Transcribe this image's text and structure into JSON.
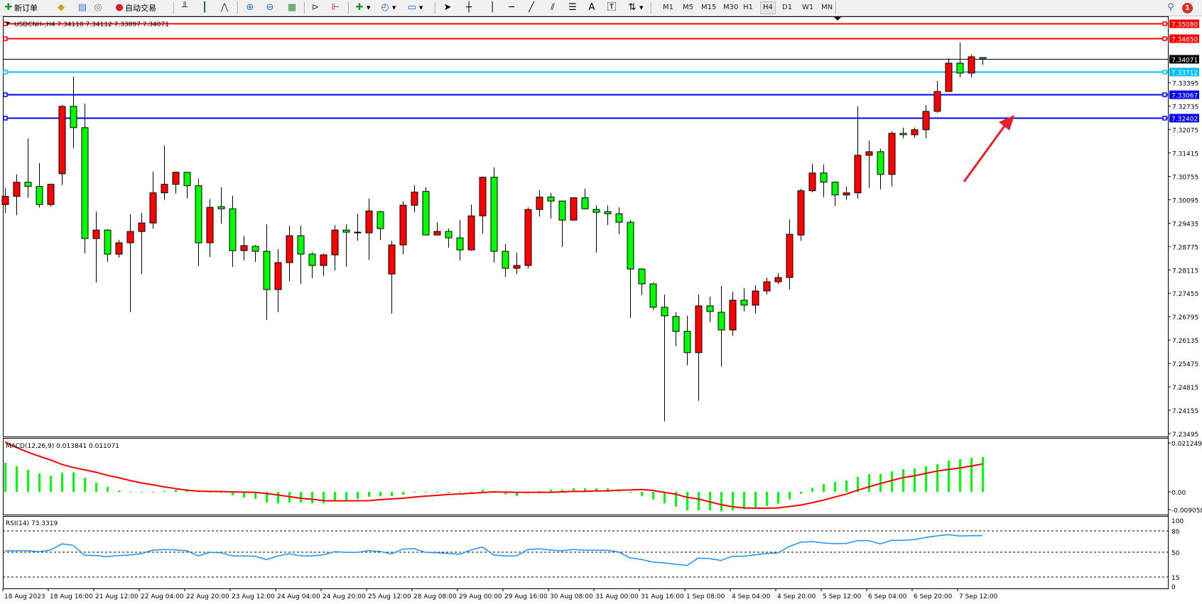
{
  "toolbar": {
    "new_order_label": "新订单",
    "auto_trading_label": "自动交易",
    "timeframes": [
      "M1",
      "M5",
      "M15",
      "M30",
      "H1",
      "H4",
      "D1",
      "W1",
      "MN"
    ],
    "active_timeframe": "H4",
    "notification_count": "1"
  },
  "chart": {
    "header": "USDCNH-,H4  7.34110 7.34112 7.33897 7.34071",
    "colors": {
      "bull": "#ff0000",
      "bear": "#00ff00",
      "outline": "#000000"
    },
    "price_ticks": [
      "7.33395",
      "7.32735",
      "7.32075",
      "7.31415",
      "7.30755",
      "7.30095",
      "7.29435",
      "7.28775",
      "7.28115",
      "7.27455",
      "7.26795",
      "7.26135",
      "7.25475",
      "7.24815",
      "7.24155",
      "7.23495"
    ],
    "horizontal_lines": [
      {
        "price": "7.35080",
        "color": "#ff0000"
      },
      {
        "price": "7.34650",
        "color": "#ff0000"
      },
      {
        "price": "7.34071",
        "color": "#000000"
      },
      {
        "price": "7.33712",
        "color": "#00bfff"
      },
      {
        "price": "7.33067",
        "color": "#0000ff"
      },
      {
        "price": "7.32402",
        "color": "#0000ff"
      }
    ],
    "arrow_color": "#e8202a",
    "time_labels": [
      "18 Aug 2023",
      "18 Aug 16:00",
      "21 Aug 12:00",
      "22 Aug 04:00",
      "22 Aug 20:00",
      "23 Aug 12:00",
      "24 Aug 04:00",
      "24 Aug 20:00",
      "25 Aug 12:00",
      "28 Aug 08:00",
      "29 Aug 00:00",
      "29 Aug 16:00",
      "30 Aug 08:00",
      "31 Aug 00:00",
      "31 Aug 16:00",
      "1 Sep 08:00",
      "4 Sep 04:00",
      "4 Sep 20:00",
      "5 Sep 12:00",
      "6 Sep 04:00",
      "6 Sep 20:00",
      "7 Sep 12:00"
    ],
    "candles_ohlc": [
      [
        7.2996,
        7.3043,
        7.2972,
        7.3019
      ],
      [
        7.3019,
        7.3081,
        7.2966,
        7.3059
      ],
      [
        7.3059,
        7.3183,
        7.3015,
        7.3047
      ],
      [
        7.3047,
        7.3113,
        7.2988,
        7.2996
      ],
      [
        7.2996,
        7.3055,
        7.299,
        7.3053
      ],
      [
        7.3083,
        7.3277,
        7.3051,
        7.3273
      ],
      [
        7.3273,
        7.3357,
        7.3155,
        7.3213
      ],
      [
        7.3213,
        7.3281,
        7.2858,
        7.29
      ],
      [
        7.29,
        7.2976,
        7.2776,
        7.2924
      ],
      [
        7.2924,
        7.2926,
        7.2834,
        7.2856
      ],
      [
        7.2856,
        7.2896,
        7.2846,
        7.2888
      ],
      [
        7.2888,
        7.2968,
        7.2692,
        7.292
      ],
      [
        7.292,
        7.2972,
        7.28,
        7.2944
      ],
      [
        7.2944,
        7.3089,
        7.2928,
        7.3029
      ],
      [
        7.3029,
        7.3163,
        7.3009,
        7.3053
      ],
      [
        7.3053,
        7.3089,
        7.3027,
        7.3087
      ],
      [
        7.3087,
        7.3087,
        7.3013,
        7.3049
      ],
      [
        7.3049,
        7.3069,
        7.2822,
        7.2888
      ],
      [
        7.2888,
        7.3011,
        7.2848,
        7.2988
      ],
      [
        7.299,
        7.3045,
        7.2942,
        7.2984
      ],
      [
        7.2984,
        7.3021,
        7.282,
        7.2866
      ],
      [
        7.2866,
        7.2908,
        7.2838,
        7.288
      ],
      [
        7.2878,
        7.2882,
        7.2834,
        7.2864
      ],
      [
        7.2864,
        7.294,
        7.267,
        7.2756
      ],
      [
        7.2756,
        7.287,
        7.2692,
        7.2832
      ],
      [
        7.2832,
        7.2936,
        7.278,
        7.2908
      ],
      [
        7.2908,
        7.2936,
        7.2772,
        7.2856
      ],
      [
        7.2856,
        7.2862,
        7.2788,
        7.2824
      ],
      [
        7.2824,
        7.2858,
        7.2794,
        7.2854
      ],
      [
        7.2854,
        7.2938,
        7.281,
        7.2924
      ],
      [
        7.2924,
        7.294,
        7.282,
        7.2918
      ],
      [
        7.2918,
        7.297,
        7.2894,
        7.2916
      ],
      [
        7.2916,
        7.3013,
        7.284,
        7.2978
      ],
      [
        7.2976,
        7.2978,
        7.2896,
        7.2928
      ],
      [
        7.28,
        7.2894,
        7.2688,
        7.2882
      ],
      [
        7.2882,
        7.3005,
        7.2856,
        7.2994
      ],
      [
        7.2994,
        7.3051,
        7.2974,
        7.3031
      ],
      [
        7.3033,
        7.3045,
        7.291,
        7.291
      ],
      [
        7.291,
        7.2946,
        7.291,
        7.292
      ],
      [
        7.292,
        7.2928,
        7.2874,
        7.2902
      ],
      [
        7.2902,
        7.2952,
        7.2838,
        7.2868
      ],
      [
        7.2868,
        7.2996,
        7.2866,
        7.2964
      ],
      [
        7.2964,
        7.3075,
        7.2914,
        7.3073
      ],
      [
        7.3073,
        7.3101,
        7.2832,
        7.2864
      ],
      [
        7.2864,
        7.2884,
        7.2792,
        7.2816
      ],
      [
        7.2816,
        7.286,
        7.28,
        7.2824
      ],
      [
        7.2824,
        7.2988,
        7.2816,
        7.2982
      ],
      [
        7.2982,
        7.3037,
        7.2962,
        7.3017
      ],
      [
        7.3017,
        7.3029,
        7.2956,
        7.3006
      ],
      [
        7.3006,
        7.3006,
        7.2876,
        7.2952
      ],
      [
        7.2952,
        7.3017,
        7.2952,
        7.3015
      ],
      [
        7.3015,
        7.3041,
        7.2982,
        7.2984
      ],
      [
        7.2982,
        7.2994,
        7.286,
        7.2974
      ],
      [
        7.2976,
        7.2994,
        7.2938,
        7.297
      ],
      [
        7.297,
        7.2988,
        7.2912,
        7.2946
      ],
      [
        7.2946,
        7.2952,
        7.2676,
        7.2814
      ],
      [
        7.2814,
        7.2816,
        7.274,
        7.2772
      ],
      [
        7.2772,
        7.2776,
        7.2698,
        7.2706
      ],
      [
        7.2706,
        7.2742,
        7.2384,
        7.2682
      ],
      [
        7.268,
        7.2692,
        7.2596,
        7.2638
      ],
      [
        7.2638,
        7.2682,
        7.2542,
        7.2578
      ],
      [
        7.2578,
        7.2742,
        7.2442,
        7.271
      ],
      [
        7.271,
        7.2736,
        7.2664,
        7.2694
      ],
      [
        7.2692,
        7.2766,
        7.2538,
        7.2642
      ],
      [
        7.2642,
        7.275,
        7.2626,
        7.2726
      ],
      [
        7.2726,
        7.276,
        7.2694,
        7.2712
      ],
      [
        7.2712,
        7.2768,
        7.2688,
        7.2752
      ],
      [
        7.2752,
        7.279,
        7.2742,
        7.2778
      ],
      [
        7.2778,
        7.2802,
        7.2772,
        7.279
      ],
      [
        7.279,
        7.2954,
        7.2756,
        7.2912
      ],
      [
        7.291,
        7.3041,
        7.2894,
        7.3035
      ],
      [
        7.3035,
        7.3111,
        7.3031,
        7.3085
      ],
      [
        7.3085,
        7.3109,
        7.3017,
        7.3059
      ],
      [
        7.3059,
        7.3061,
        7.2992,
        7.3023
      ],
      [
        7.3023,
        7.3047,
        7.3009,
        7.3029
      ],
      [
        7.3029,
        7.3273,
        7.3013,
        7.3135
      ],
      [
        7.3135,
        7.3177,
        7.3043,
        7.3145
      ],
      [
        7.3145,
        7.3153,
        7.3039,
        7.3081
      ],
      [
        7.3081,
        7.3203,
        7.3047,
        7.3197
      ],
      [
        7.3197,
        7.3213,
        7.3183,
        7.3193
      ],
      [
        7.3193,
        7.3213,
        7.3185,
        7.3207
      ],
      [
        7.3207,
        7.3277,
        7.3183,
        7.3259
      ],
      [
        7.3259,
        7.3345,
        7.3255,
        7.3315
      ],
      [
        7.3315,
        7.3409,
        7.3315,
        7.3395
      ],
      [
        7.3395,
        7.3453,
        7.3355,
        7.3367
      ],
      [
        7.3367,
        7.3419,
        7.3355,
        7.3413
      ],
      [
        7.3411,
        7.34112,
        7.33897,
        7.34071
      ]
    ]
  },
  "macd": {
    "label": "MACD(12,26,9) 0.013841 0.011071",
    "axis_labels": [
      "0.021249",
      "0.00",
      "-0.009058"
    ],
    "histogram_color": "#00ff00",
    "signal_color": "#ff0000",
    "histogram": [
      0.01156,
      0.01015,
      0.00874,
      0.00733,
      0.00639,
      0.00761,
      0.0078,
      0.00555,
      0.00367,
      0.00197,
      0.00056,
      -0.00019,
      -0.00019,
      -0.00019,
      0.00038,
      0.00094,
      0.00066,
      0.00019,
      0,
      -0.00038,
      -0.00132,
      -0.00226,
      -0.00273,
      -0.00423,
      -0.00451,
      -0.00423,
      -0.00423,
      -0.00451,
      -0.00451,
      -0.00348,
      -0.00348,
      -0.00282,
      -0.00197,
      -0.00169,
      -0.00169,
      -0.00113,
      0.00019,
      0,
      0,
      -0.00038,
      0,
      0.00019,
      0.00085,
      0.00028,
      -0.00103,
      -0.00169,
      -0.00066,
      0.00028,
      0.00085,
      0.00085,
      0.00141,
      0.00141,
      0.00141,
      0.00141,
      0.00028,
      -0.00019,
      -0.00169,
      -0.00301,
      -0.00451,
      -0.00583,
      -0.00733,
      -0.00733,
      -0.00733,
      -0.0078,
      -0.00733,
      -0.00696,
      -0.00649,
      -0.00564,
      -0.0047,
      -0.00301,
      -0.00075,
      0.0016,
      0.0031,
      0.00395,
      0.00451,
      0.00592,
      0.00705,
      0.00705,
      0.00818,
      0.00902,
      0.00931,
      0.01015,
      0.011,
      0.01241,
      0.01297,
      0.01354,
      0.013841
    ],
    "signal": [
      0.01983,
      0.01767,
      0.01579,
      0.01419,
      0.01269,
      0.0109,
      0.00968,
      0.00874,
      0.0078,
      0.00658,
      0.00564,
      0.00451,
      0.00357,
      0.00282,
      0.00197,
      0.00132,
      0.00066,
      0.00028,
      0.00019,
      9e-05,
      0,
      -9e-05,
      -0.00019,
      -0.00066,
      -0.00122,
      -0.00188,
      -0.00254,
      -0.00291,
      -0.00348,
      -0.00357,
      -0.00357,
      -0.00357,
      -0.00348,
      -0.0031,
      -0.00282,
      -0.00254,
      -0.00207,
      -0.00169,
      -0.00141,
      -0.00103,
      -0.00085,
      -0.00056,
      -0.00028,
      0,
      -9e-05,
      -0.00019,
      -0.00019,
      -0.00019,
      -0.00019,
      0,
      0.00019,
      0.00019,
      0.00038,
      0.00038,
      0.00066,
      0.00075,
      0.00094,
      0.00056,
      -0.00019,
      -0.00094,
      -0.00216,
      -0.00282,
      -0.00395,
      -0.00508,
      -0.00592,
      -0.00639,
      -0.00649,
      -0.00649,
      -0.00639,
      -0.00583,
      -0.00526,
      -0.00432,
      -0.00329,
      -0.00207,
      -0.00094,
      0.00066,
      0.00197,
      0.00329,
      0.00451,
      0.00564,
      0.00639,
      0.00733,
      0.00827,
      0.00893,
      0.00949,
      0.01025,
      0.011071
    ]
  },
  "rsi": {
    "label": "RSI(14) 73.3319",
    "axis_labels": [
      "100",
      "80",
      "50",
      "15",
      "0"
    ],
    "levels": [
      80,
      50,
      15
    ],
    "line_color": "#1e90ff",
    "values": [
      52,
      52,
      52,
      50.7,
      53,
      61.7,
      59.7,
      45.7,
      45.3,
      43.7,
      45.3,
      46,
      48,
      52.7,
      53.7,
      53.3,
      52,
      44.7,
      49.7,
      49.3,
      44.7,
      44.7,
      44.3,
      39.7,
      44.7,
      47.7,
      44.7,
      44.7,
      46.3,
      50.7,
      49.7,
      49.7,
      52.3,
      51,
      47.7,
      54.3,
      55,
      49.7,
      49.3,
      48.3,
      47,
      53,
      57.3,
      46,
      44.7,
      44.7,
      53.7,
      54.7,
      53,
      52,
      53.7,
      52.7,
      52.7,
      52.7,
      50.3,
      42,
      39.7,
      36,
      35,
      33,
      31.3,
      41.7,
      41,
      38.3,
      44.3,
      44.3,
      46.3,
      48.3,
      49,
      58,
      64,
      65,
      63,
      62,
      62.3,
      66.3,
      66.3,
      61.7,
      66.7,
      66.7,
      67.7,
      70.7,
      73,
      74.7,
      72.7,
      73.3,
      73.3319
    ]
  }
}
